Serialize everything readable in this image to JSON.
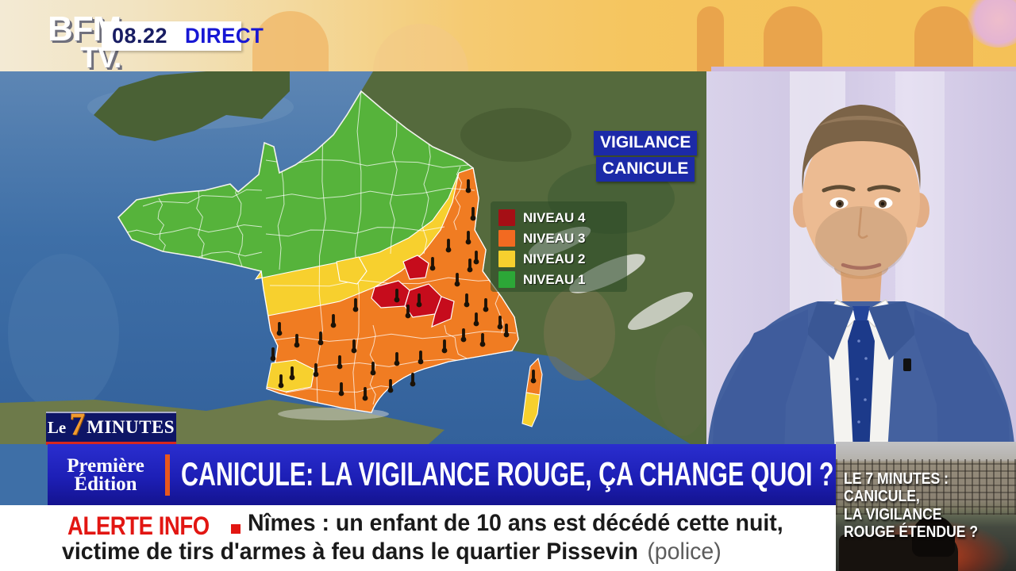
{
  "channel": {
    "logo_top": "BFM",
    "logo_bottom": "TV.",
    "time": "08.22",
    "live": "DIRECT"
  },
  "map_label": {
    "line1": "VIGILANCE",
    "line2": "CANICULE"
  },
  "legend": {
    "items": [
      {
        "label": "NIVEAU 4",
        "color": "#a50f15"
      },
      {
        "label": "NIVEAU 3",
        "color": "#f26a21"
      },
      {
        "label": "NIVEAU 2",
        "color": "#f7d02e"
      },
      {
        "label": "NIVEAU 1",
        "color": "#2ca737"
      }
    ]
  },
  "show_badge": {
    "le": "Le",
    "number": "7",
    "word": "MINUTES"
  },
  "program_badge": {
    "line1": "Première",
    "line2": "Édition"
  },
  "headline": "CANICULE: LA VIGILANCE ROUGE, ÇA CHANGE QUOI ?",
  "ticker": {
    "alert": "ALERTE INFO",
    "line1": "Nîmes : un enfant de 10 ans est décédé cette nuit,",
    "line2": "victime de tirs d'armes à feu dans le quartier Pissevin",
    "line2_note": "(police)"
  },
  "thumbnail": {
    "line1": "LE 7 MINUTES :",
    "line2": "CANICULE,",
    "line3": "LA VIGILANCE",
    "line4": "ROUGE ÉTENDUE ?"
  },
  "colors": {
    "direct_blue": "#1717d4",
    "banner_blue": "#1d1fb6",
    "alert_red": "#e21612",
    "vigilance_label_blue": "#1c2aa8"
  }
}
